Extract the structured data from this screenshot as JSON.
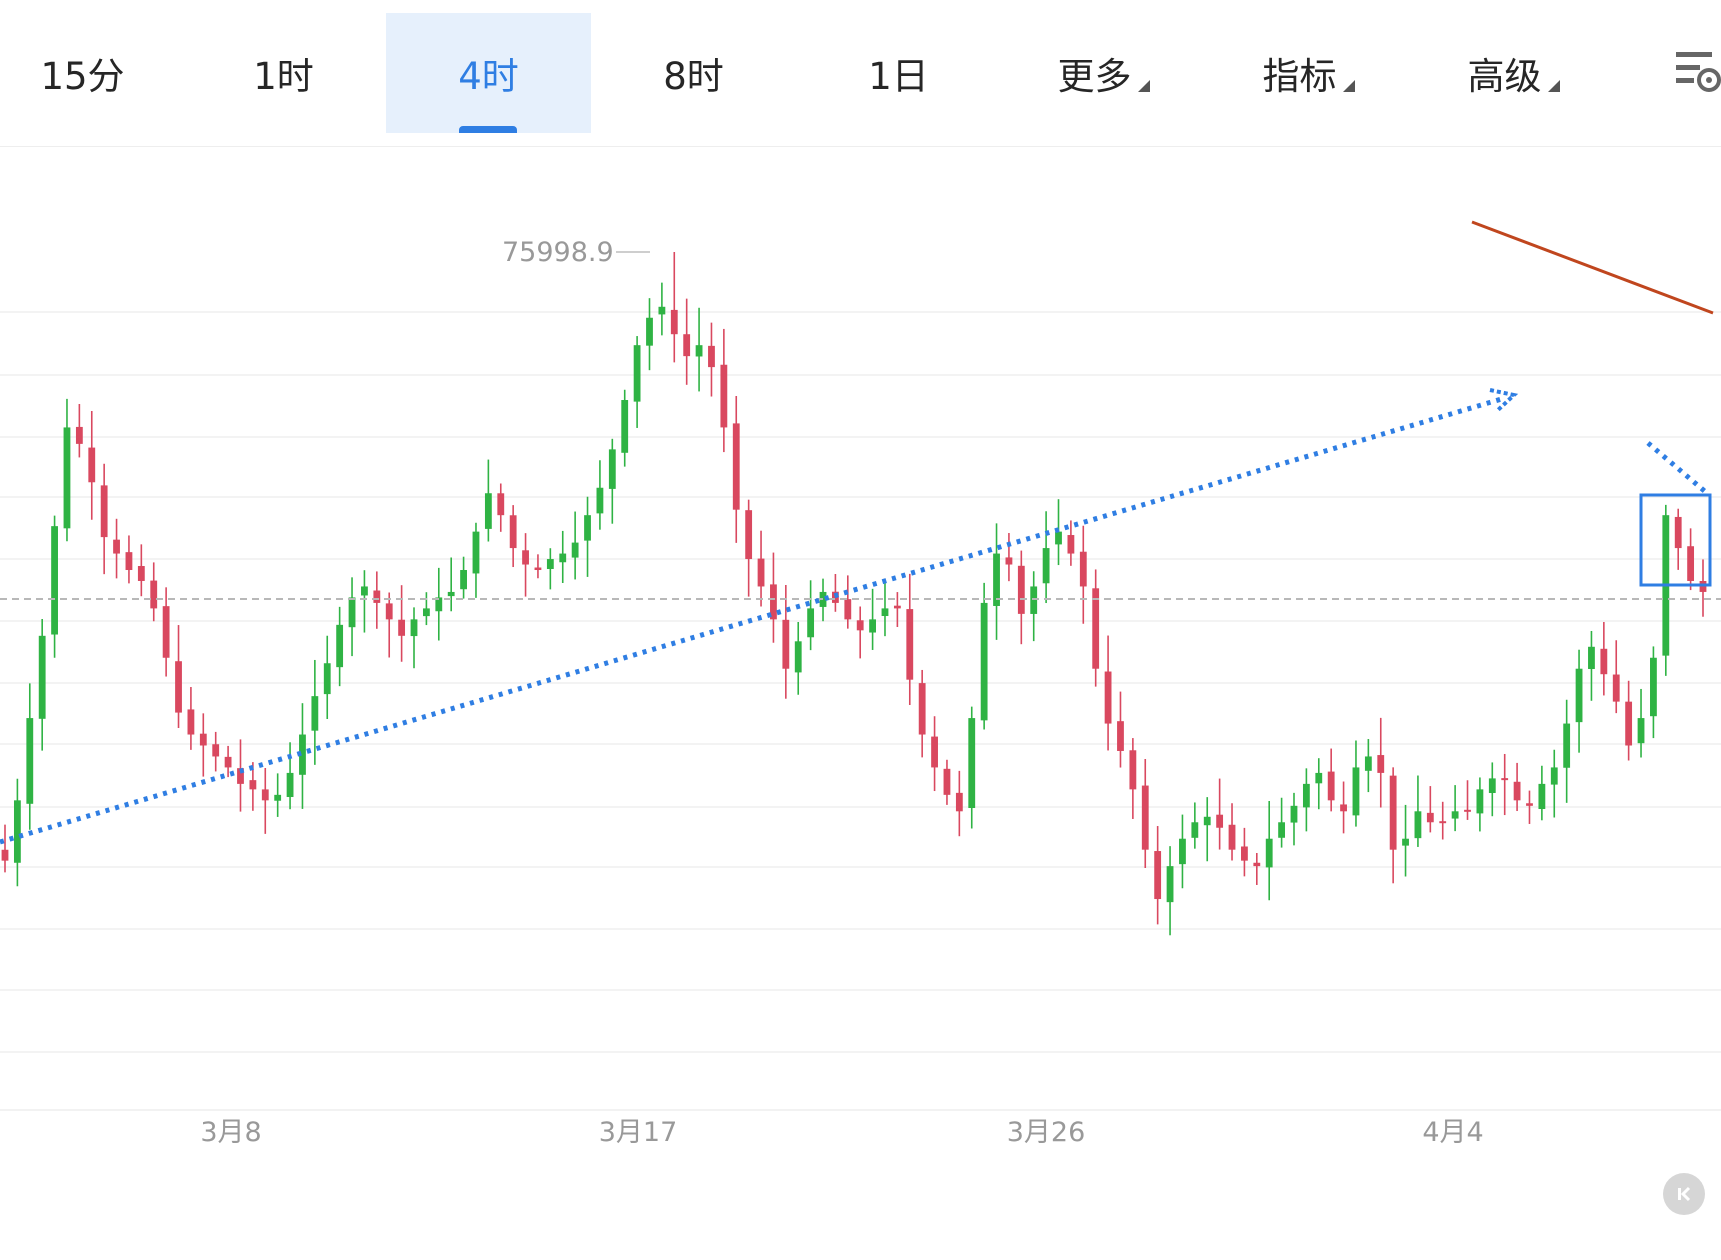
{
  "toolbar": {
    "tabs": [
      {
        "label": "15分",
        "active": false
      },
      {
        "label": "1时",
        "active": false
      },
      {
        "label": "4时",
        "active": true
      },
      {
        "label": "8时",
        "active": false
      },
      {
        "label": "1日",
        "active": false
      },
      {
        "label": "更多",
        "active": false,
        "dropdown": true
      },
      {
        "label": "指标",
        "active": false,
        "dropdown": true
      },
      {
        "label": "高级",
        "active": false,
        "dropdown": true
      }
    ],
    "settings_icon": "chart-settings-icon"
  },
  "colors": {
    "up": "#2fb344",
    "down": "#d9485f",
    "accent": "#2f7ee3",
    "trendline": "#c0461e",
    "grid": "#efefef"
  },
  "chart_data": {
    "type": "candlestick",
    "timeframe": "4时",
    "high_marker": "75998.9",
    "x_ticks": [
      "3月8",
      "3月17",
      "3月26",
      "4月4"
    ],
    "grid": true,
    "close_series": [
      64900,
      66000,
      67500,
      69000,
      71000,
      72800,
      72500,
      71800,
      70800,
      70500,
      70200,
      70000,
      69500,
      68600,
      67600,
      67200,
      67000,
      66800,
      66600,
      66300,
      66200,
      66000,
      66100,
      66500,
      67200,
      67900,
      68500,
      69200,
      69700,
      69900,
      69600,
      69300,
      69000,
      69300,
      69500,
      69700,
      69800,
      70200,
      70900,
      71600,
      71200,
      70600,
      70300,
      70200,
      70400,
      70500,
      70700,
      71200,
      71700,
      72400,
      73300,
      74300,
      74800,
      75000,
      74500,
      74100,
      74300,
      73900,
      72800,
      71300,
      70400,
      69900,
      69300,
      68400,
      68900,
      69500,
      69800,
      69600,
      69300,
      69100,
      69300,
      69500,
      69500,
      68200,
      67200,
      66600,
      66100,
      65800,
      67500,
      69600,
      70500,
      70300,
      69400,
      69900,
      70600,
      70900,
      70500,
      69900,
      68400,
      67400,
      66900,
      66200,
      65100,
      64200,
      64800,
      65300,
      65600,
      65700,
      65500,
      65100,
      64900,
      64800,
      65300,
      65600,
      65900,
      66300,
      66500,
      66000,
      65800,
      66600,
      66800,
      66500,
      65100,
      65300,
      65800,
      65600,
      65600,
      65800,
      65800,
      66200,
      66400,
      66400,
      66000,
      65900,
      66300,
      66600,
      67400,
      68400,
      68800,
      68300,
      67800,
      67000,
      67500,
      68600,
      71200,
      70600,
      70000,
      69800
    ]
  }
}
